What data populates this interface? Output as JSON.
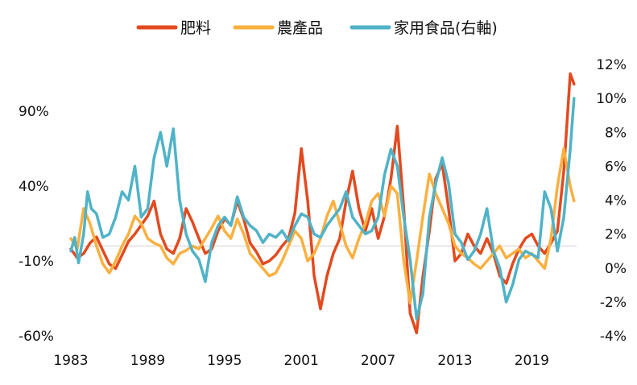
{
  "chart_data": {
    "type": "line",
    "title": "",
    "xlabel": "",
    "ylabel": "",
    "x_ticks": [
      "1983",
      "1989",
      "1995",
      "2001",
      "2007",
      "2013",
      "2019"
    ],
    "xlim": [
      1983,
      2022.5
    ],
    "left_axis": {
      "ticks": [
        "90%",
        "40%",
        "-10%",
        "-60%"
      ],
      "values": [
        90,
        40,
        -10,
        -60
      ],
      "ylim": [
        -60,
        100
      ]
    },
    "right_axis": {
      "ticks": [
        "12%",
        "10%",
        "8%",
        "6%",
        "4%",
        "2%",
        "0%",
        "-2%",
        "-4%"
      ],
      "values": [
        12,
        10,
        8,
        6,
        4,
        2,
        0,
        -2,
        -4
      ],
      "ylim": [
        -4,
        12
      ]
    },
    "reference_line": {
      "axis": "left",
      "value": 0
    },
    "legend_position": "top-center",
    "series": [
      {
        "name": "肥料",
        "axis": "left",
        "color": "#e34a1f",
        "points": [
          [
            1983.0,
            -2
          ],
          [
            1983.5,
            -8
          ],
          [
            1984.0,
            -5
          ],
          [
            1984.5,
            2
          ],
          [
            1985.0,
            6
          ],
          [
            1985.5,
            -3
          ],
          [
            1986.0,
            -12
          ],
          [
            1986.5,
            -15
          ],
          [
            1987.0,
            -6
          ],
          [
            1987.5,
            3
          ],
          [
            1988.0,
            8
          ],
          [
            1988.5,
            14
          ],
          [
            1989.0,
            20
          ],
          [
            1989.5,
            30
          ],
          [
            1990.0,
            8
          ],
          [
            1990.5,
            -2
          ],
          [
            1991.0,
            -5
          ],
          [
            1991.5,
            5
          ],
          [
            1992.0,
            25
          ],
          [
            1992.5,
            16
          ],
          [
            1993.0,
            5
          ],
          [
            1993.5,
            -5
          ],
          [
            1994.0,
            -2
          ],
          [
            1994.5,
            10
          ],
          [
            1995.0,
            18
          ],
          [
            1995.5,
            14
          ],
          [
            1996.0,
            30
          ],
          [
            1996.5,
            18
          ],
          [
            1997.0,
            2
          ],
          [
            1997.5,
            -4
          ],
          [
            1998.0,
            -12
          ],
          [
            1998.5,
            -10
          ],
          [
            1999.0,
            -6
          ],
          [
            1999.5,
            0
          ],
          [
            2000.0,
            5
          ],
          [
            2000.5,
            22
          ],
          [
            2001.0,
            65
          ],
          [
            2001.5,
            30
          ],
          [
            2002.0,
            -20
          ],
          [
            2002.5,
            -42
          ],
          [
            2003.0,
            -20
          ],
          [
            2003.5,
            -5
          ],
          [
            2004.0,
            5
          ],
          [
            2004.5,
            30
          ],
          [
            2005.0,
            50
          ],
          [
            2005.5,
            25
          ],
          [
            2006.0,
            10
          ],
          [
            2006.5,
            25
          ],
          [
            2007.0,
            5
          ],
          [
            2007.5,
            20
          ],
          [
            2008.0,
            45
          ],
          [
            2008.5,
            80
          ],
          [
            2009.0,
            25
          ],
          [
            2009.5,
            -45
          ],
          [
            2010.0,
            -58
          ],
          [
            2010.5,
            -20
          ],
          [
            2011.0,
            10
          ],
          [
            2011.5,
            45
          ],
          [
            2012.0,
            55
          ],
          [
            2012.5,
            25
          ],
          [
            2013.0,
            -10
          ],
          [
            2013.5,
            -5
          ],
          [
            2014.0,
            8
          ],
          [
            2014.5,
            0
          ],
          [
            2015.0,
            -5
          ],
          [
            2015.5,
            5
          ],
          [
            2016.0,
            -5
          ],
          [
            2016.5,
            -20
          ],
          [
            2017.0,
            -25
          ],
          [
            2017.5,
            -12
          ],
          [
            2018.0,
            -2
          ],
          [
            2018.5,
            5
          ],
          [
            2019.0,
            8
          ],
          [
            2019.5,
            0
          ],
          [
            2020.0,
            -5
          ],
          [
            2020.5,
            2
          ],
          [
            2021.0,
            10
          ],
          [
            2021.5,
            50
          ],
          [
            2022.0,
            115
          ],
          [
            2022.3,
            108
          ]
        ]
      },
      {
        "name": "農產品",
        "axis": "left",
        "color": "#fbb040",
        "points": [
          [
            1983.0,
            5
          ],
          [
            1983.5,
            -2
          ],
          [
            1984.0,
            25
          ],
          [
            1984.5,
            15
          ],
          [
            1985.0,
            0
          ],
          [
            1985.5,
            -12
          ],
          [
            1986.0,
            -18
          ],
          [
            1986.5,
            -10
          ],
          [
            1987.0,
            0
          ],
          [
            1987.5,
            8
          ],
          [
            1988.0,
            20
          ],
          [
            1988.5,
            15
          ],
          [
            1989.0,
            5
          ],
          [
            1989.5,
            2
          ],
          [
            1990.0,
            0
          ],
          [
            1990.5,
            -8
          ],
          [
            1991.0,
            -12
          ],
          [
            1991.5,
            -5
          ],
          [
            1992.0,
            -3
          ],
          [
            1992.5,
            0
          ],
          [
            1993.0,
            -2
          ],
          [
            1993.5,
            5
          ],
          [
            1994.0,
            12
          ],
          [
            1994.5,
            20
          ],
          [
            1995.0,
            10
          ],
          [
            1995.5,
            5
          ],
          [
            1996.0,
            18
          ],
          [
            1996.5,
            8
          ],
          [
            1997.0,
            -5
          ],
          [
            1997.5,
            -10
          ],
          [
            1998.0,
            -15
          ],
          [
            1998.5,
            -20
          ],
          [
            1999.0,
            -18
          ],
          [
            1999.5,
            -10
          ],
          [
            2000.0,
            0
          ],
          [
            2000.5,
            10
          ],
          [
            2001.0,
            5
          ],
          [
            2001.5,
            -10
          ],
          [
            2002.0,
            -5
          ],
          [
            2002.5,
            5
          ],
          [
            2003.0,
            20
          ],
          [
            2003.5,
            30
          ],
          [
            2004.0,
            15
          ],
          [
            2004.5,
            0
          ],
          [
            2005.0,
            -8
          ],
          [
            2005.5,
            5
          ],
          [
            2006.0,
            15
          ],
          [
            2006.5,
            30
          ],
          [
            2007.0,
            35
          ],
          [
            2007.5,
            20
          ],
          [
            2008.0,
            40
          ],
          [
            2008.5,
            35
          ],
          [
            2009.0,
            -10
          ],
          [
            2009.5,
            -38
          ],
          [
            2010.0,
            -10
          ],
          [
            2010.5,
            20
          ],
          [
            2011.0,
            48
          ],
          [
            2011.5,
            35
          ],
          [
            2012.0,
            25
          ],
          [
            2012.5,
            15
          ],
          [
            2013.0,
            0
          ],
          [
            2013.5,
            -5
          ],
          [
            2014.0,
            -8
          ],
          [
            2014.5,
            -12
          ],
          [
            2015.0,
            -15
          ],
          [
            2015.5,
            -10
          ],
          [
            2016.0,
            -5
          ],
          [
            2016.5,
            0
          ],
          [
            2017.0,
            -8
          ],
          [
            2017.5,
            -5
          ],
          [
            2018.0,
            -2
          ],
          [
            2018.5,
            -8
          ],
          [
            2019.0,
            -5
          ],
          [
            2019.5,
            -10
          ],
          [
            2020.0,
            -15
          ],
          [
            2020.5,
            5
          ],
          [
            2021.0,
            40
          ],
          [
            2021.5,
            65
          ],
          [
            2022.0,
            40
          ],
          [
            2022.3,
            30
          ]
        ]
      },
      {
        "name": "家用食品(右軸)",
        "axis": "right",
        "color": "#4fb3c8",
        "points": [
          [
            1983.0,
            1.0
          ],
          [
            1983.3,
            1.8
          ],
          [
            1983.6,
            0.3
          ],
          [
            1984.0,
            2.0
          ],
          [
            1984.3,
            4.5
          ],
          [
            1984.6,
            3.5
          ],
          [
            1985.0,
            3.2
          ],
          [
            1985.5,
            1.8
          ],
          [
            1986.0,
            2.0
          ],
          [
            1986.5,
            3.0
          ],
          [
            1987.0,
            4.5
          ],
          [
            1987.5,
            4.0
          ],
          [
            1988.0,
            6.0
          ],
          [
            1988.5,
            3.0
          ],
          [
            1989.0,
            3.5
          ],
          [
            1989.5,
            6.5
          ],
          [
            1990.0,
            8.0
          ],
          [
            1990.5,
            6.0
          ],
          [
            1991.0,
            8.2
          ],
          [
            1991.5,
            4.0
          ],
          [
            1992.0,
            2.0
          ],
          [
            1992.5,
            1.0
          ],
          [
            1993.0,
            0.5
          ],
          [
            1993.5,
            -0.8
          ],
          [
            1994.0,
            1.5
          ],
          [
            1994.5,
            2.5
          ],
          [
            1995.0,
            3.0
          ],
          [
            1995.5,
            2.5
          ],
          [
            1996.0,
            4.2
          ],
          [
            1996.5,
            3.0
          ],
          [
            1997.0,
            2.5
          ],
          [
            1997.5,
            2.2
          ],
          [
            1998.0,
            1.5
          ],
          [
            1998.5,
            2.0
          ],
          [
            1999.0,
            1.8
          ],
          [
            1999.5,
            2.2
          ],
          [
            2000.0,
            1.6
          ],
          [
            2000.5,
            2.5
          ],
          [
            2001.0,
            3.2
          ],
          [
            2001.5,
            3.0
          ],
          [
            2002.0,
            2.0
          ],
          [
            2002.5,
            1.8
          ],
          [
            2003.0,
            2.5
          ],
          [
            2003.5,
            3.0
          ],
          [
            2004.0,
            3.5
          ],
          [
            2004.5,
            4.5
          ],
          [
            2005.0,
            3.0
          ],
          [
            2005.5,
            2.5
          ],
          [
            2006.0,
            2.0
          ],
          [
            2006.5,
            2.2
          ],
          [
            2007.0,
            3.0
          ],
          [
            2007.5,
            5.5
          ],
          [
            2008.0,
            7.0
          ],
          [
            2008.5,
            6.0
          ],
          [
            2009.0,
            3.0
          ],
          [
            2009.5,
            0.5
          ],
          [
            2010.0,
            -3.0
          ],
          [
            2010.5,
            -1.5
          ],
          [
            2011.0,
            3.0
          ],
          [
            2011.5,
            5.0
          ],
          [
            2012.0,
            6.5
          ],
          [
            2012.5,
            5.0
          ],
          [
            2013.0,
            2.0
          ],
          [
            2013.5,
            1.5
          ],
          [
            2014.0,
            0.5
          ],
          [
            2014.5,
            1.0
          ],
          [
            2015.0,
            2.0
          ],
          [
            2015.5,
            3.5
          ],
          [
            2016.0,
            1.0
          ],
          [
            2016.5,
            0.0
          ],
          [
            2017.0,
            -2.0
          ],
          [
            2017.5,
            -1.0
          ],
          [
            2018.0,
            0.5
          ],
          [
            2018.5,
            1.0
          ],
          [
            2019.0,
            0.8
          ],
          [
            2019.5,
            0.6
          ],
          [
            2020.0,
            4.5
          ],
          [
            2020.5,
            3.5
          ],
          [
            2021.0,
            1.0
          ],
          [
            2021.5,
            3.0
          ],
          [
            2022.0,
            7.0
          ],
          [
            2022.3,
            10.0
          ]
        ]
      }
    ]
  }
}
